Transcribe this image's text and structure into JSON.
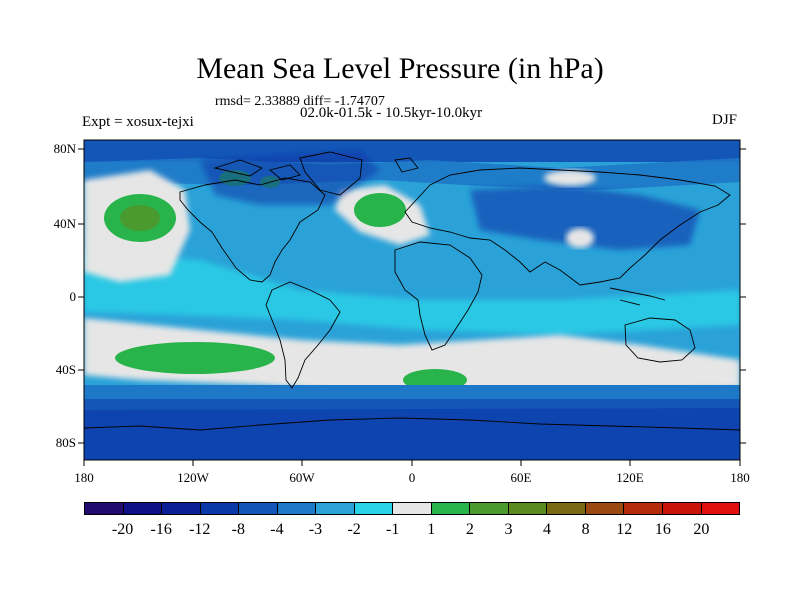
{
  "title": "Mean Sea Level Pressure (in hPa)",
  "stats": "rmsd= 2.33889 diff= -1.74707",
  "period": "02.0k-01.5k - 10.5kyr-10.0kyr",
  "experiment": "Expt = xosux-tejxi",
  "season": "DJF",
  "lat_labels": [
    "80N",
    "40N",
    "0",
    "40S",
    "80S"
  ],
  "lon_labels": [
    "180",
    "120W",
    "60W",
    "0",
    "60E",
    "120E",
    "180"
  ],
  "colorbar": {
    "labels": [
      "-20",
      "-16",
      "-12",
      "-8",
      "-4",
      "-3",
      "-2",
      "-1",
      "1",
      "2",
      "3",
      "4",
      "8",
      "12",
      "16",
      "20"
    ],
    "colors": [
      "#220a6e",
      "#0f0f86",
      "#0a1f96",
      "#0a38a8",
      "#1456b8",
      "#1e78c8",
      "#2aa2d8",
      "#2ad2e8",
      "#e6e6e6",
      "#28b44a",
      "#4a9a30",
      "#5a8a20",
      "#7a6a14",
      "#9a4a10",
      "#b42a0a",
      "#c8140a",
      "#e01010"
    ]
  },
  "fields": {
    "ocean_base": "#2aa2d8",
    "light": "#2ad2e8",
    "neutral": "#e6e6e6",
    "mid": "#1e78c8",
    "dark": "#1456b8",
    "deep": "#0a38a8",
    "pos2": "#28b44a",
    "pos3": "#4a9a30"
  }
}
